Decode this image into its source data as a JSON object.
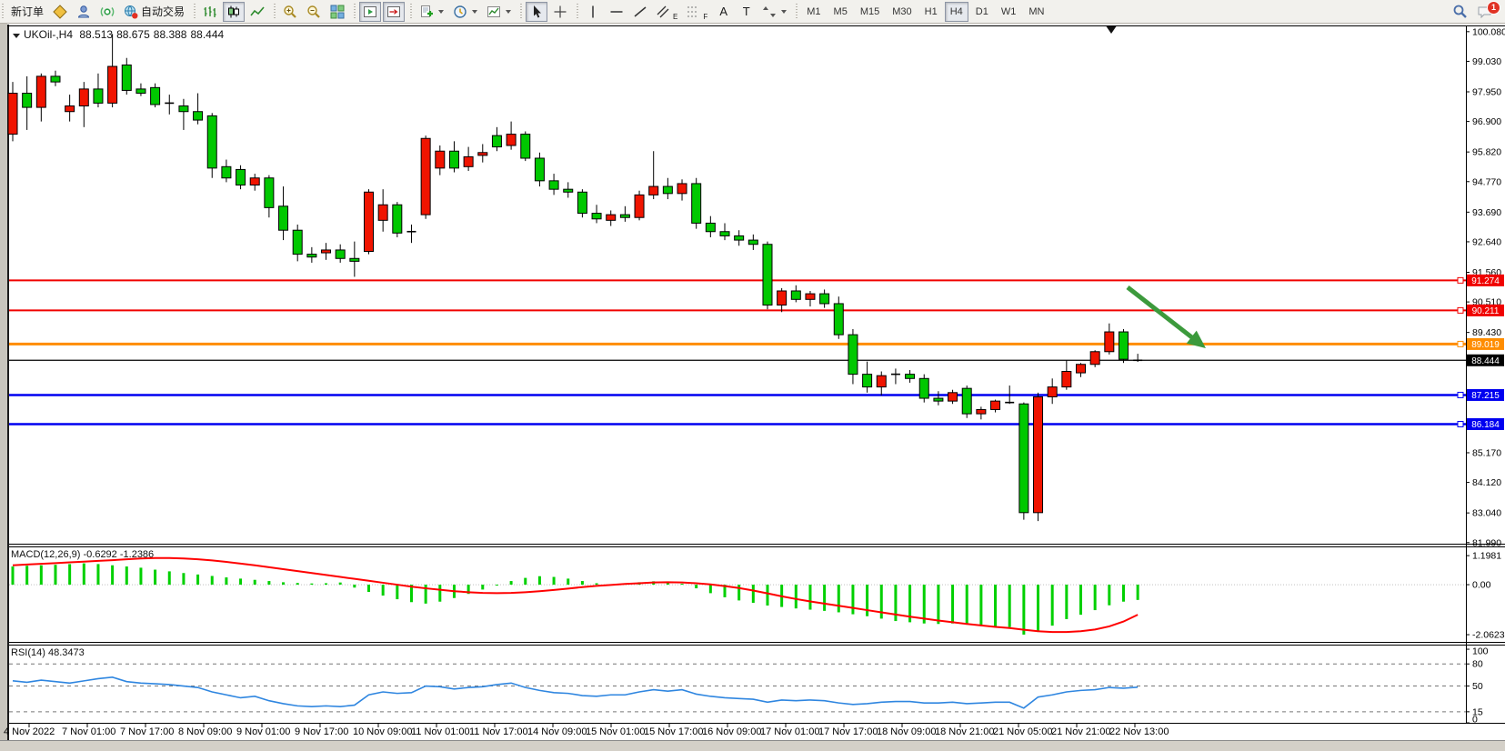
{
  "toolbar": {
    "new_order_label": "新订单",
    "autotrading_label": "自动交易",
    "text_tool_label": "A",
    "label_tool_label": "T",
    "channel_tool_label": "E",
    "fibonacci_tool_label": "F",
    "timeframes": [
      "M1",
      "M5",
      "M15",
      "M30",
      "H1",
      "H4",
      "D1",
      "W1",
      "MN"
    ],
    "active_timeframe": "H4",
    "notification_count": "1"
  },
  "chart_data": {
    "type": "candlestick+indicators",
    "title": {
      "symbol_period": "UKOil-,H4",
      "open": "88.513",
      "high": "88.675",
      "low": "88.388",
      "close": "88.444"
    },
    "colors": {
      "bull": "#f01400",
      "bear": "#00c800",
      "wick": "#000000",
      "macd_histogram": "#00d000",
      "macd_signal": "#ff0000",
      "rsi_line": "#2f86e0",
      "arrow": "#3c9a3c"
    },
    "price_axis_ticks": [
      "100.080",
      "99.030",
      "97.950",
      "96.900",
      "95.820",
      "94.770",
      "93.690",
      "92.640",
      "91.560",
      "90.510",
      "89.430",
      "85.170",
      "84.120",
      "83.040",
      "81.990"
    ],
    "price_range": [
      81.95,
      100.3
    ],
    "hlines": [
      {
        "label": "91.274",
        "price": 91.274,
        "color": "#f00200",
        "width": 2
      },
      {
        "label": "90.211",
        "price": 90.211,
        "color": "#f00200",
        "width": 2
      },
      {
        "label": "89.019",
        "price": 89.019,
        "color": "#ff8d00",
        "width": 3
      },
      {
        "label": "88.444",
        "price": 88.444,
        "color": "#000000",
        "width": 1.2,
        "is_current_price": true
      },
      {
        "label": "87.215",
        "price": 87.215,
        "color": "#0000f0",
        "width": 2.5
      },
      {
        "label": "86.184",
        "price": 86.184,
        "color": "#0000f0",
        "width": 2.5
      }
    ],
    "candles": [
      [
        96.45,
        98.3,
        96.2,
        97.9
      ],
      [
        97.9,
        98.5,
        96.6,
        97.4
      ],
      [
        97.4,
        98.6,
        96.9,
        98.5
      ],
      [
        98.5,
        98.7,
        98.15,
        98.3
      ],
      [
        97.25,
        97.85,
        96.9,
        97.45
      ],
      [
        97.45,
        98.3,
        96.7,
        98.05
      ],
      [
        98.05,
        98.6,
        97.4,
        97.55
      ],
      [
        97.55,
        100.0,
        97.4,
        98.85
      ],
      [
        98.9,
        99.15,
        97.85,
        98.0
      ],
      [
        98.05,
        98.25,
        97.8,
        97.9
      ],
      [
        98.1,
        98.25,
        97.4,
        97.5
      ],
      [
        97.5,
        97.85,
        97.15,
        97.55
      ],
      [
        97.45,
        97.7,
        96.6,
        97.25
      ],
      [
        97.25,
        97.9,
        96.8,
        96.95
      ],
      [
        97.1,
        97.2,
        94.9,
        95.25
      ],
      [
        95.3,
        95.55,
        94.75,
        94.9
      ],
      [
        95.2,
        95.35,
        94.5,
        94.65
      ],
      [
        94.65,
        95.05,
        94.45,
        94.9
      ],
      [
        94.9,
        95.0,
        93.5,
        93.85
      ],
      [
        93.9,
        94.6,
        92.7,
        93.05
      ],
      [
        93.05,
        93.25,
        91.95,
        92.2
      ],
      [
        92.2,
        92.45,
        91.9,
        92.1
      ],
      [
        92.25,
        92.6,
        92.0,
        92.35
      ],
      [
        92.35,
        92.55,
        91.9,
        92.05
      ],
      [
        92.05,
        92.65,
        91.4,
        91.95
      ],
      [
        92.3,
        94.5,
        92.2,
        94.4
      ],
      [
        93.4,
        94.5,
        93.0,
        93.95
      ],
      [
        93.95,
        94.05,
        92.8,
        92.95
      ],
      [
        92.95,
        93.25,
        92.6,
        93.0
      ],
      [
        93.6,
        96.4,
        93.45,
        96.3
      ],
      [
        95.25,
        96.05,
        95.0,
        95.85
      ],
      [
        95.85,
        96.2,
        95.1,
        95.25
      ],
      [
        95.3,
        96.0,
        95.15,
        95.65
      ],
      [
        95.7,
        96.1,
        95.45,
        95.8
      ],
      [
        96.4,
        96.7,
        95.85,
        96.0
      ],
      [
        96.05,
        96.9,
        95.9,
        96.45
      ],
      [
        96.45,
        96.55,
        95.5,
        95.6
      ],
      [
        95.6,
        95.8,
        94.6,
        94.8
      ],
      [
        94.8,
        95.05,
        94.3,
        94.5
      ],
      [
        94.5,
        94.75,
        94.2,
        94.4
      ],
      [
        94.4,
        94.5,
        93.5,
        93.65
      ],
      [
        93.65,
        93.95,
        93.3,
        93.45
      ],
      [
        93.4,
        93.75,
        93.2,
        93.6
      ],
      [
        93.6,
        93.9,
        93.35,
        93.5
      ],
      [
        93.5,
        94.45,
        93.4,
        94.3
      ],
      [
        94.3,
        95.85,
        94.15,
        94.6
      ],
      [
        94.6,
        94.9,
        94.15,
        94.35
      ],
      [
        94.35,
        94.85,
        94.1,
        94.7
      ],
      [
        94.7,
        94.9,
        93.1,
        93.3
      ],
      [
        93.3,
        93.55,
        92.8,
        93.0
      ],
      [
        93.0,
        93.3,
        92.7,
        92.85
      ],
      [
        92.85,
        93.05,
        92.5,
        92.7
      ],
      [
        92.7,
        92.9,
        92.35,
        92.55
      ],
      [
        92.55,
        92.65,
        90.25,
        90.4
      ],
      [
        90.4,
        91.0,
        90.15,
        90.9
      ],
      [
        90.9,
        91.1,
        90.5,
        90.6
      ],
      [
        90.6,
        90.9,
        90.35,
        90.8
      ],
      [
        90.8,
        90.95,
        90.3,
        90.45
      ],
      [
        90.45,
        90.7,
        89.2,
        89.35
      ],
      [
        89.35,
        89.55,
        87.6,
        87.95
      ],
      [
        87.95,
        88.4,
        87.3,
        87.5
      ],
      [
        87.5,
        88.05,
        87.2,
        87.9
      ],
      [
        87.9,
        88.15,
        87.6,
        87.95
      ],
      [
        87.95,
        88.1,
        87.65,
        87.8
      ],
      [
        87.8,
        87.95,
        86.95,
        87.1
      ],
      [
        87.1,
        87.35,
        86.85,
        87.0
      ],
      [
        87.0,
        87.4,
        86.9,
        87.3
      ],
      [
        87.45,
        87.55,
        86.4,
        86.55
      ],
      [
        86.55,
        86.8,
        86.35,
        86.7
      ],
      [
        86.7,
        87.05,
        86.6,
        87.0
      ],
      [
        87.0,
        87.55,
        86.9,
        86.95
      ],
      [
        86.9,
        86.95,
        82.8,
        83.05
      ],
      [
        83.05,
        87.3,
        82.75,
        87.15
      ],
      [
        87.15,
        87.8,
        86.9,
        87.5
      ],
      [
        87.5,
        88.45,
        87.4,
        88.05
      ],
      [
        88.0,
        88.35,
        87.85,
        88.3
      ],
      [
        88.3,
        88.8,
        88.2,
        88.75
      ],
      [
        88.75,
        89.75,
        88.65,
        89.45
      ],
      [
        89.45,
        89.55,
        88.35,
        88.48
      ],
      [
        88.513,
        88.675,
        88.388,
        88.444
      ]
    ],
    "macd": {
      "name_label": "MACD(12,26,9)",
      "value": "-0.6292",
      "signal_value": "-1.2386",
      "scale_ticks": [
        "1.1981",
        "0.00",
        "-2.0623"
      ],
      "range": [
        -2.36,
        1.54
      ],
      "histogram": [
        0.75,
        0.78,
        0.8,
        0.82,
        0.85,
        0.88,
        0.85,
        0.8,
        0.75,
        0.7,
        0.62,
        0.55,
        0.48,
        0.42,
        0.36,
        0.3,
        0.25,
        0.2,
        0.15,
        0.1,
        0.07,
        0.05,
        0.06,
        0.09,
        -0.12,
        -0.3,
        -0.45,
        -0.6,
        -0.72,
        -0.78,
        -0.7,
        -0.55,
        -0.38,
        -0.2,
        -0.02,
        0.15,
        0.28,
        0.35,
        0.32,
        0.25,
        0.15,
        0.06,
        0.02,
        0.05,
        0.1,
        0.14,
        0.1,
        0.04,
        -0.15,
        -0.35,
        -0.52,
        -0.65,
        -0.75,
        -0.86,
        -0.92,
        -0.98,
        -1.03,
        -1.08,
        -1.14,
        -1.22,
        -1.3,
        -1.4,
        -1.5,
        -1.55,
        -1.6,
        -1.62,
        -1.6,
        -1.65,
        -1.7,
        -1.72,
        -1.75,
        -2.06,
        -1.95,
        -1.69,
        -1.42,
        -1.24,
        -1.05,
        -0.85,
        -0.7,
        -0.6292
      ],
      "signal": [
        0.8,
        0.83,
        0.86,
        0.89,
        0.92,
        0.95,
        0.98,
        1.01,
        1.05,
        1.08,
        1.1,
        1.1,
        1.08,
        1.05,
        1.0,
        0.94,
        0.87,
        0.8,
        0.72,
        0.64,
        0.56,
        0.48,
        0.4,
        0.32,
        0.24,
        0.16,
        0.08,
        0.0,
        -0.08,
        -0.15,
        -0.21,
        -0.27,
        -0.31,
        -0.34,
        -0.35,
        -0.34,
        -0.31,
        -0.27,
        -0.22,
        -0.16,
        -0.1,
        -0.05,
        -0.01,
        0.03,
        0.06,
        0.09,
        0.1,
        0.09,
        0.06,
        0.01,
        -0.06,
        -0.14,
        -0.24,
        -0.36,
        -0.48,
        -0.59,
        -0.69,
        -0.78,
        -0.87,
        -0.96,
        -1.05,
        -1.14,
        -1.23,
        -1.32,
        -1.4,
        -1.48,
        -1.55,
        -1.62,
        -1.68,
        -1.74,
        -1.79,
        -1.86,
        -1.92,
        -1.95,
        -1.95,
        -1.92,
        -1.85,
        -1.72,
        -1.52,
        -1.2386
      ]
    },
    "rsi": {
      "name_label": "RSI(14)",
      "value": "48.3473",
      "scale_ticks": [
        "100",
        "80",
        "50",
        "15",
        "0"
      ],
      "levels": [
        80,
        50,
        15
      ],
      "range": [
        0,
        105
      ],
      "values": [
        57,
        55,
        58,
        56,
        54,
        57,
        60,
        62,
        56,
        54,
        53,
        52,
        50,
        48,
        42,
        38,
        34,
        36,
        30,
        26,
        23,
        22,
        23,
        22,
        24,
        38,
        42,
        40,
        41,
        50,
        49,
        46,
        48,
        49,
        52,
        54,
        48,
        44,
        41,
        40,
        37,
        36,
        38,
        38,
        42,
        45,
        43,
        45,
        39,
        36,
        34,
        33,
        32,
        28,
        31,
        30,
        31,
        30,
        27,
        25,
        26,
        28,
        29,
        29,
        27,
        27,
        28,
        26,
        27,
        28,
        28,
        20,
        35,
        38,
        42,
        44,
        45,
        48,
        47,
        48.35
      ]
    },
    "time_axis": [
      "4 Nov 2022",
      "7 Nov 01:00",
      "7 Nov 17:00",
      "8 Nov 09:00",
      "9 Nov 01:00",
      "9 Nov 17:00",
      "10 Nov 09:00",
      "11 Nov 01:00",
      "11 Nov 17:00",
      "14 Nov 09:00",
      "15 Nov 01:00",
      "15 Nov 17:00",
      "16 Nov 09:00",
      "17 Nov 01:00",
      "17 Nov 17:00",
      "18 Nov 09:00",
      "18 Nov 21:00",
      "21 Nov 05:00",
      "21 Nov 21:00",
      "22 Nov 13:00"
    ],
    "annotation_arrow": {
      "from": [
        1240,
        316
      ],
      "to": [
        1326,
        383
      ]
    }
  }
}
